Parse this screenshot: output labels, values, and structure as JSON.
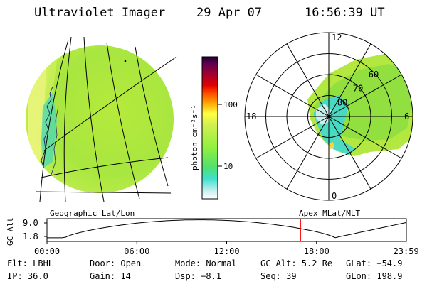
{
  "header": {
    "instrument": "Ultraviolet Imager",
    "date": "29 Apr 07",
    "time": "16:56:39 UT"
  },
  "colorbar": {
    "ticks": [
      {
        "label": "100",
        "value": 100
      },
      {
        "label": "10",
        "value": 10
      }
    ],
    "unit_label": "photon cm⁻²s⁻¹",
    "colors": [
      "#ffffff",
      "#d0f0f0",
      "#40e0d0",
      "#50e070",
      "#90f040",
      "#d0f050",
      "#ffff40",
      "#ffa000",
      "#ff5000",
      "#e00000",
      "#a00030",
      "#600050",
      "#200030"
    ]
  },
  "polar_plot": {
    "mlt_labels": [
      {
        "text": "12",
        "angle_deg": 0
      },
      {
        "text": "6",
        "angle_deg": 90
      },
      {
        "text": "0",
        "angle_deg": 180
      },
      {
        "text": "18",
        "angle_deg": 270
      }
    ],
    "lat_labels": [
      {
        "text": "80",
        "lat": 80
      },
      {
        "text": "70",
        "lat": 70
      },
      {
        "text": "60",
        "lat": 60
      }
    ],
    "rings": [
      80,
      70,
      60,
      50
    ]
  },
  "labels": {
    "geo_label": "Geographic Lat/Lon",
    "apex_label": "Apex MLat/MLT",
    "gc_alt_axis": "GC Alt"
  },
  "altitude_plot": {
    "y_ticks": [
      {
        "label": "9.0",
        "value": 9.0
      },
      {
        "label": "1.8",
        "value": 1.8
      }
    ],
    "x_ticks": [
      "00:00",
      "06:00",
      "12:00",
      "18:00",
      "23:59"
    ],
    "marker_color": "#ff0000"
  },
  "footer": {
    "row1": {
      "flt": "Flt: LBHL",
      "door": "Door: Open",
      "mode": "Mode: Normal",
      "gcalt": "GC Alt: 5.2 Re",
      "glat": "GLat: −54.9"
    },
    "row2": {
      "ip": "IP: 36.0",
      "gain": "Gain: 14",
      "dsp": "Dsp:   −8.1",
      "seq": "Seq: 39",
      "glon": "GLon: 198.9"
    }
  }
}
